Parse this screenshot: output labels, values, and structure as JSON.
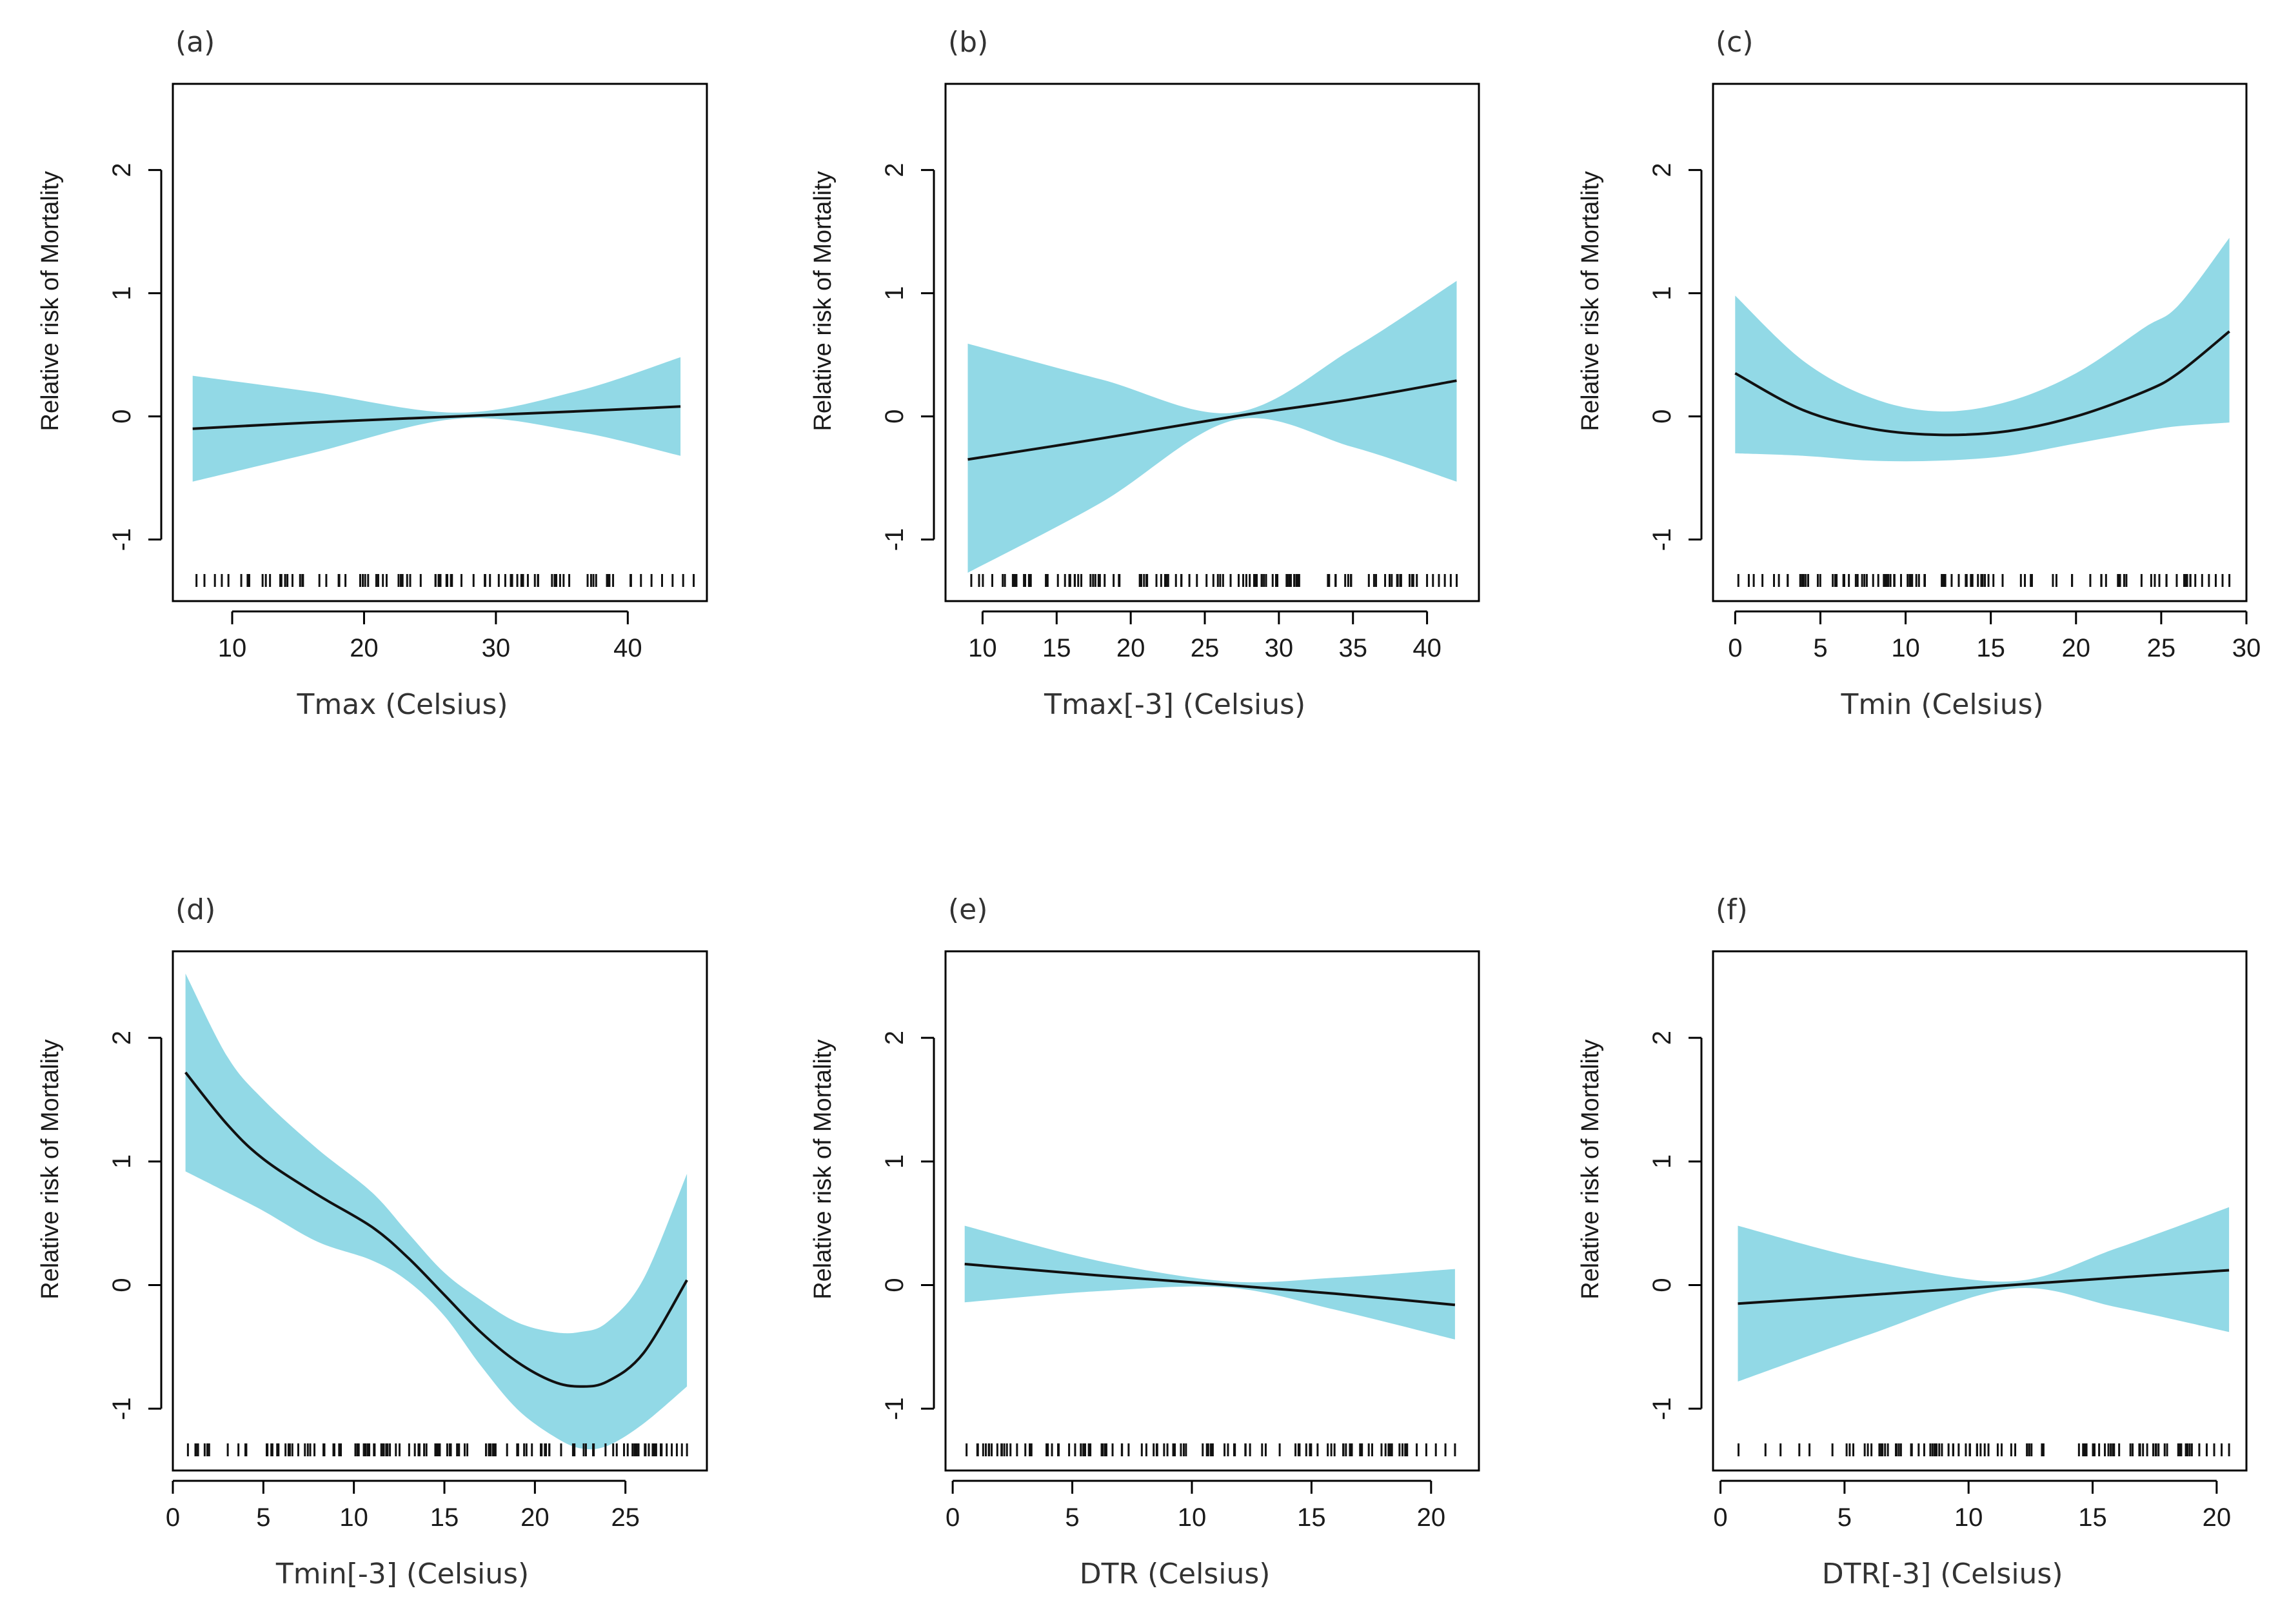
{
  "figure": {
    "band_color": "#92d9e6",
    "line_color": "#111111",
    "rug_color": "#111111"
  },
  "chart_data": [
    {
      "type": "line",
      "panel_label": "(a)",
      "xlabel": "Tmax (Celsius)",
      "ylabel": "Relative risk of Mortality",
      "xlim": [
        5.5,
        46
      ],
      "ylim": [
        -1.5,
        2.7
      ],
      "xticks": [
        10,
        20,
        30,
        40
      ],
      "yticks": [
        -1,
        0,
        1,
        2
      ],
      "x": [
        7,
        16,
        27,
        36,
        44
      ],
      "fit": [
        -0.1,
        -0.05,
        0.0,
        0.04,
        0.08
      ],
      "lower": [
        -0.53,
        -0.3,
        -0.02,
        -0.12,
        -0.32
      ],
      "upper": [
        0.33,
        0.2,
        0.03,
        0.2,
        0.48
      ],
      "rug": {
        "min": 7,
        "max": 45,
        "count": 90,
        "dense_from": 11,
        "dense_to": 41
      }
    },
    {
      "type": "line",
      "panel_label": "(b)",
      "xlabel": "Tmax[-3] (Celsius)",
      "ylabel": "Relative risk of Mortality",
      "xlim": [
        7.5,
        43.5
      ],
      "ylim": [
        -1.5,
        2.7
      ],
      "xticks": [
        10,
        15,
        20,
        25,
        30,
        35,
        40
      ],
      "yticks": [
        -1,
        0,
        1,
        2
      ],
      "x": [
        9,
        18,
        27,
        35,
        42
      ],
      "fit": [
        -0.35,
        -0.18,
        0.0,
        0.14,
        0.29
      ],
      "lower": [
        -1.27,
        -0.7,
        -0.03,
        -0.25,
        -0.53
      ],
      "upper": [
        0.59,
        0.3,
        0.03,
        0.55,
        1.1
      ],
      "rug": {
        "min": 9,
        "max": 42,
        "count": 110,
        "dense_from": 12,
        "dense_to": 40
      }
    },
    {
      "type": "line",
      "panel_label": "(c)",
      "xlabel": "Tmin (Celsius)",
      "ylabel": "Relative risk of Mortality",
      "xlim": [
        -1.3,
        30
      ],
      "ylim": [
        -1.5,
        2.7
      ],
      "xticks": [
        0,
        5,
        10,
        15,
        20,
        25,
        30
      ],
      "yticks": [
        -1,
        0,
        1,
        2
      ],
      "x": [
        0,
        4,
        8,
        12,
        16,
        20,
        24,
        26,
        29
      ],
      "fit": [
        0.35,
        0.05,
        -0.1,
        -0.15,
        -0.12,
        0.0,
        0.2,
        0.35,
        0.69
      ],
      "lower": [
        -0.3,
        -0.32,
        -0.36,
        -0.36,
        -0.32,
        -0.22,
        -0.12,
        -0.08,
        -0.05
      ],
      "upper": [
        0.98,
        0.45,
        0.15,
        0.04,
        0.12,
        0.35,
        0.72,
        0.9,
        1.45
      ],
      "rug": {
        "min": 0,
        "max": 29,
        "count": 100,
        "dense_from": 3,
        "dense_to": 27
      }
    },
    {
      "type": "line",
      "panel_label": "(d)",
      "xlabel": "Tmin[-3] (Celsius)",
      "ylabel": "Relative risk of Mortality",
      "xlim": [
        0,
        29.5
      ],
      "ylim": [
        -1.5,
        2.7
      ],
      "xticks": [
        0,
        5,
        10,
        15,
        20,
        25
      ],
      "yticks": [
        -1,
        0,
        1,
        2
      ],
      "x": [
        0.7,
        3,
        5,
        8,
        11,
        13,
        15,
        17,
        19,
        21,
        22.5,
        24,
        26,
        28.4
      ],
      "fit": [
        1.72,
        1.3,
        1.02,
        0.73,
        0.47,
        0.22,
        -0.08,
        -0.38,
        -0.62,
        -0.78,
        -0.82,
        -0.78,
        -0.55,
        0.04
      ],
      "lower": [
        0.92,
        0.75,
        0.6,
        0.35,
        0.2,
        0.03,
        -0.25,
        -0.65,
        -1.0,
        -1.22,
        -1.32,
        -1.3,
        -1.12,
        -0.82
      ],
      "upper": [
        2.52,
        1.85,
        1.5,
        1.1,
        0.75,
        0.42,
        0.1,
        -0.12,
        -0.3,
        -0.38,
        -0.38,
        -0.3,
        0.05,
        0.9
      ],
      "rug": {
        "min": 0.7,
        "max": 28.4,
        "count": 130,
        "dense_from": 2,
        "dense_to": 27
      }
    },
    {
      "type": "line",
      "panel_label": "(e)",
      "xlabel": "DTR (Celsius)",
      "ylabel": "Relative risk of Mortality",
      "xlim": [
        -0.3,
        22
      ],
      "ylim": [
        -1.5,
        2.7
      ],
      "xticks": [
        0,
        5,
        10,
        15,
        20
      ],
      "yticks": [
        -1,
        0,
        1,
        2
      ],
      "x": [
        0.5,
        6,
        11.5,
        16,
        21
      ],
      "fit": [
        0.17,
        0.08,
        0.0,
        -0.07,
        -0.16
      ],
      "lower": [
        -0.14,
        -0.05,
        -0.02,
        -0.2,
        -0.44
      ],
      "upper": [
        0.48,
        0.2,
        0.03,
        0.06,
        0.13
      ],
      "rug": {
        "min": 0.5,
        "max": 21,
        "count": 110,
        "dense_from": 1.5,
        "dense_to": 19
      }
    },
    {
      "type": "line",
      "panel_label": "(f)",
      "xlabel": "DTR[-3] (Celsius)",
      "ylabel": "Relative risk of Mortality",
      "xlim": [
        -0.3,
        21.2
      ],
      "ylim": [
        -1.5,
        2.7
      ],
      "xticks": [
        0,
        5,
        10,
        15,
        20
      ],
      "yticks": [
        -1,
        0,
        1,
        2
      ],
      "x": [
        0.7,
        6,
        11.7,
        16,
        20.5
      ],
      "fit": [
        -0.15,
        -0.08,
        0.0,
        0.06,
        0.12
      ],
      "lower": [
        -0.78,
        -0.4,
        -0.03,
        -0.18,
        -0.38
      ],
      "upper": [
        0.48,
        0.2,
        0.03,
        0.3,
        0.63
      ],
      "rug": {
        "min": 0.7,
        "max": 20.5,
        "count": 95,
        "dense_from": 5,
        "dense_to": 19
      }
    }
  ]
}
